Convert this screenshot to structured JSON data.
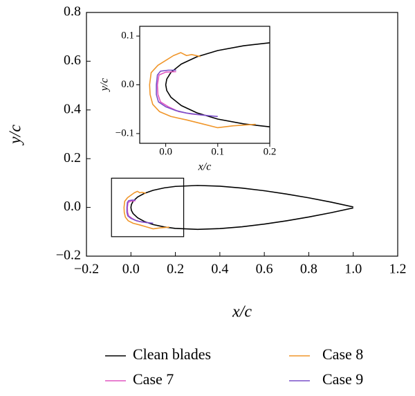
{
  "chart_data": {
    "type": "line",
    "xlabel": "x/c",
    "ylabel": "y/c",
    "xlim": [
      -0.2,
      1.2
    ],
    "ylim": [
      -0.2,
      0.8
    ],
    "xticks": [
      {
        "value": -0.2,
        "label": "−0.2"
      },
      {
        "value": 0,
        "label": "0.0"
      },
      0.2,
      0.4,
      0.6,
      0.8,
      {
        "value": 1,
        "label": "1.0"
      },
      1.2
    ],
    "yticks": [
      {
        "value": -0.2,
        "label": "−0.2"
      },
      {
        "value": 0,
        "label": "0.0"
      },
      0.2,
      0.4,
      0.6,
      0.8
    ],
    "series": [
      {
        "name": "Clean blades",
        "color": "#000000",
        "x": [
          1.0,
          0.9,
          0.8,
          0.7,
          0.6,
          0.5,
          0.4,
          0.3,
          0.2,
          0.15,
          0.1,
          0.06,
          0.03,
          0.01,
          0.002,
          0,
          0.002,
          0.01,
          0.03,
          0.06,
          0.1,
          0.15,
          0.2,
          0.3,
          0.4,
          0.5,
          0.6,
          0.7,
          0.8,
          0.9,
          1.0
        ],
        "values": [
          0.002,
          0.0218,
          0.0394,
          0.0549,
          0.0684,
          0.0794,
          0.087,
          0.0901,
          0.0862,
          0.0802,
          0.0703,
          0.0575,
          0.0426,
          0.0255,
          0.0117,
          0,
          -0.0117,
          -0.0255,
          -0.0426,
          -0.0575,
          -0.0703,
          -0.0802,
          -0.0862,
          -0.0901,
          -0.087,
          -0.0794,
          -0.0684,
          -0.0549,
          -0.0394,
          -0.0218,
          -0.002
        ]
      },
      {
        "name": "Case 7",
        "color": "#e055c0",
        "x": [
          0.02,
          0.0,
          -0.013,
          -0.016,
          -0.015,
          -0.01,
          0.005,
          0.025,
          0.05,
          0.08
        ],
        "values": [
          0.027,
          0.026,
          0.02,
          0.0,
          -0.02,
          -0.035,
          -0.045,
          -0.055,
          -0.06,
          -0.063
        ]
      },
      {
        "name": "Case 8",
        "color": "#f0962a",
        "x": [
          0.067,
          0.05,
          0.04,
          0.029,
          0.015,
          0.0,
          -0.015,
          -0.028,
          -0.031,
          -0.03,
          -0.025,
          -0.012,
          0.01,
          0.04,
          0.07,
          0.1,
          0.13,
          0.173
        ],
        "values": [
          0.058,
          0.062,
          0.06,
          0.066,
          0.06,
          0.05,
          0.04,
          0.025,
          0.0,
          -0.02,
          -0.04,
          -0.055,
          -0.065,
          -0.072,
          -0.08,
          -0.088,
          -0.084,
          -0.081
        ]
      },
      {
        "name": "Case 9",
        "color": "#7a4fc9",
        "x": [
          0.02,
          0.005,
          -0.01,
          -0.016,
          -0.018,
          -0.018,
          -0.014,
          0.0,
          0.02,
          0.04,
          0.07,
          0.1
        ],
        "values": [
          0.03,
          0.03,
          0.028,
          0.02,
          0.0,
          -0.02,
          -0.035,
          -0.045,
          -0.053,
          -0.058,
          -0.062,
          -0.065
        ]
      }
    ],
    "inset": {
      "xlabel": "x/c",
      "ylabel": "y/c",
      "xlim": [
        -0.05,
        0.2
      ],
      "ylim": [
        -0.12,
        0.12
      ],
      "xticks": [
        {
          "value": 0,
          "label": "0.0"
        },
        0.1,
        0.2
      ],
      "yticks": [
        0.1,
        {
          "value": 0,
          "label": "0.0"
        },
        {
          "value": -0.1,
          "label": "−0.1"
        }
      ]
    }
  }
}
